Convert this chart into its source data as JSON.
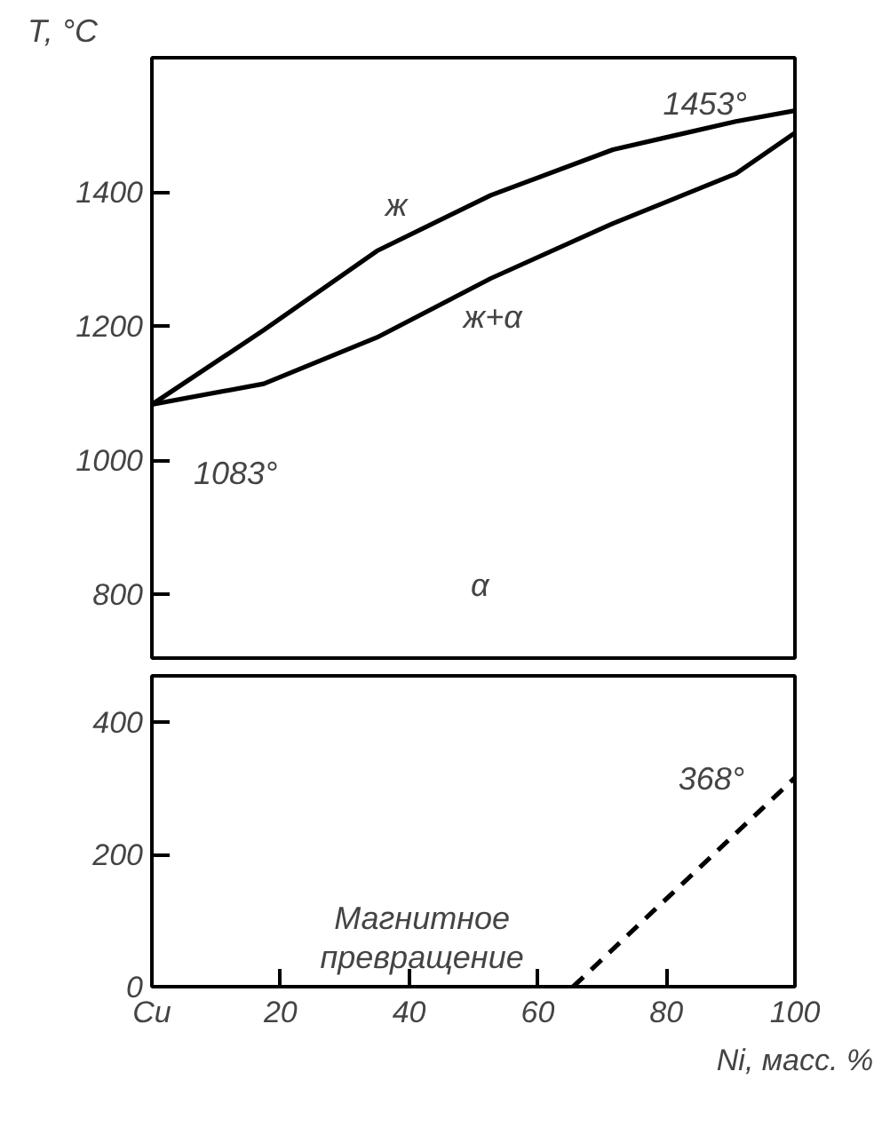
{
  "chart_data": [
    {
      "type": "line",
      "ylabel": "T, °C",
      "xlim": [
        0,
        100
      ],
      "ylim": [
        705,
        1600
      ],
      "yticks": [
        800,
        1000,
        1200,
        1400
      ],
      "xticks": [
        0,
        20,
        40,
        60,
        80,
        100
      ],
      "tick_labels": "y",
      "grid": false,
      "marker": "none",
      "series": [
        {
          "color": "#000000",
          "line_style": "solid",
          "x": [
            0,
            17.4,
            35,
            52.7,
            71.7,
            90.8,
            100
          ],
          "values": [
            1083,
            1194,
            1312,
            1395,
            1463,
            1505,
            1521
          ]
        },
        {
          "color": "#000000",
          "line_style": "solid",
          "x": [
            0,
            17.4,
            35,
            52.7,
            71.7,
            90.8,
            100
          ],
          "values": [
            1083,
            1114,
            1183,
            1271,
            1353,
            1427,
            1488
          ]
        }
      ],
      "annotations": [
        "1453°",
        "1083°",
        "ж",
        "ж+α",
        "α"
      ]
    },
    {
      "type": "line",
      "xlabel": "Ni, масс. %",
      "xlim": [
        0,
        100
      ],
      "ylim": [
        0,
        470
      ],
      "yticks": [
        0,
        200,
        400
      ],
      "xticks": [
        {
          "value": 0,
          "label": "Cu"
        },
        20,
        40,
        60,
        80,
        100
      ],
      "grid": false,
      "marker": "none",
      "series": [
        {
          "color": "#000000",
          "line_style": "dashed",
          "x": [
            65.5,
            100
          ],
          "values": [
            0,
            316
          ]
        }
      ],
      "annotations": [
        "368°",
        "Магнитное\nпревращение"
      ]
    }
  ]
}
